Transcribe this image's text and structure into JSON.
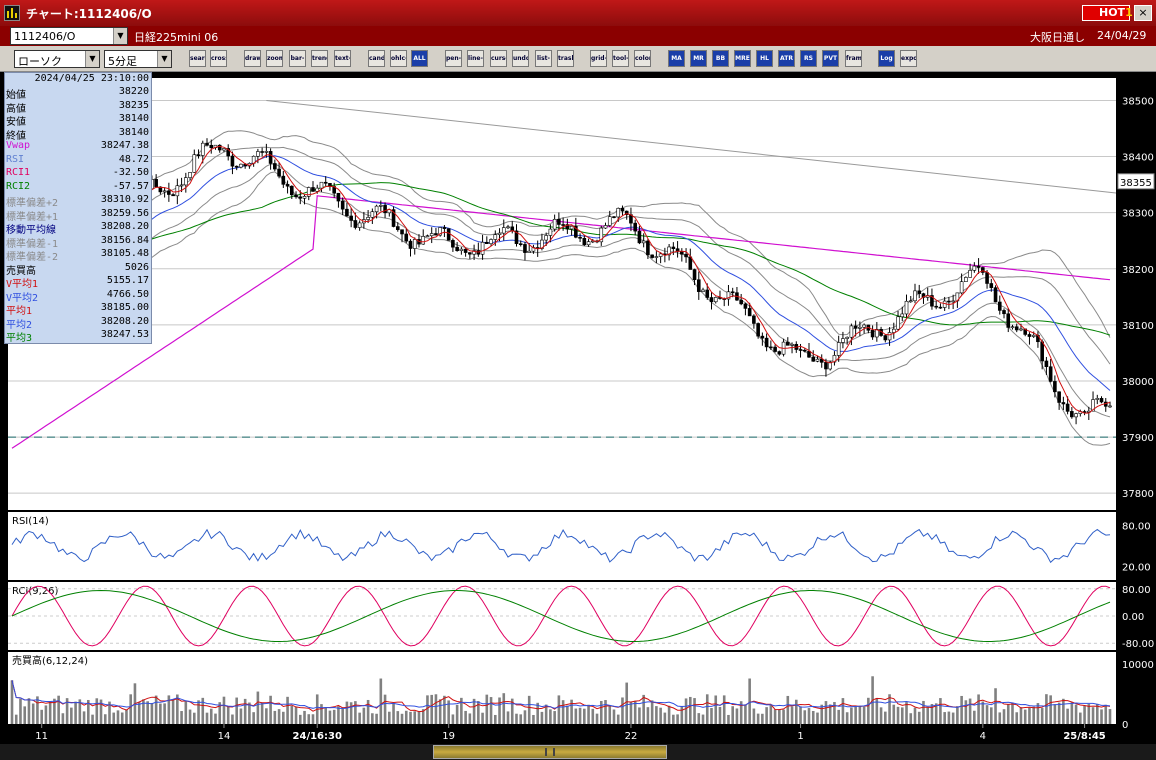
{
  "window": {
    "title": "チャート:1112406/O",
    "hot_label": "HOT",
    "hot_num": "1",
    "close": "×"
  },
  "header": {
    "symbol_code": "1112406/O",
    "instrument": "日経225mini 06",
    "chart_type": "ローソク",
    "interval": "5分足",
    "session": "大阪日通し",
    "date": "24/04/29"
  },
  "toolbar": {
    "buttons": [
      "search-icon",
      "crosshair-icon",
      "draw-icon",
      "zoom-icon",
      "bar-icon",
      "trend-icon",
      "text-icon",
      "candle-icon",
      "ohlc-icon",
      "ALL",
      "pen-icon",
      "line-icon",
      "cursor-icon",
      "undo-icon",
      "list-icon",
      "trash-icon",
      "grid-icon",
      "tool-icon",
      "color-icon",
      "MA",
      "MR",
      "BB",
      "MRE",
      "HL",
      "ATR",
      "RS",
      "PVT",
      "frame-icon",
      "Log",
      "export-icon"
    ]
  },
  "info_panel": {
    "datetime": "2024/04/25  23:10:00",
    "rows": [
      {
        "label": "始値",
        "value": "38220",
        "color": "#000000"
      },
      {
        "label": "高値",
        "value": "38235",
        "color": "#000000"
      },
      {
        "label": "安値",
        "value": "38140",
        "color": "#000000"
      },
      {
        "label": "終値",
        "value": "38140",
        "color": "#000000"
      },
      {
        "label": "Vwap",
        "value": "38247.38",
        "color": "#d010d0"
      },
      {
        "label": "RSI",
        "value": "48.72",
        "color": "#6080d0"
      },
      {
        "label": "RCI1",
        "value": "-32.50",
        "color": "#e00060"
      },
      {
        "label": "RCI2",
        "value": "-57.57",
        "color": "#008000"
      },
      {
        "label": "標準偏差+2",
        "value": "38310.92",
        "color": "#8a8a8a"
      },
      {
        "label": "標準偏差+1",
        "value": "38259.56",
        "color": "#8a8a8a"
      },
      {
        "label": "移動平均線",
        "value": "38208.20",
        "color": "#000080"
      },
      {
        "label": "標準偏差-1",
        "value": "38156.84",
        "color": "#8a8a8a"
      },
      {
        "label": "標準偏差-2",
        "value": "38105.48",
        "color": "#8a8a8a"
      },
      {
        "label": "売買高",
        "value": "5026",
        "color": "#000000"
      },
      {
        "label": "V平均1",
        "value": "5155.17",
        "color": "#d01010"
      },
      {
        "label": "V平均2",
        "value": "4766.50",
        "color": "#3050e0"
      },
      {
        "label": "平均1",
        "value": "38185.00",
        "color": "#d01010"
      },
      {
        "label": "平均2",
        "value": "38208.20",
        "color": "#3050e0"
      },
      {
        "label": "平均3",
        "value": "38247.53",
        "color": "#008000"
      }
    ]
  },
  "chart_data": [
    {
      "type": "candlestick",
      "y_ticks": [
        38500,
        38400,
        38300,
        38200,
        38100,
        38000,
        37900,
        37800
      ],
      "ylim": [
        37770,
        38540
      ],
      "current_price": "38355",
      "x_ticks": [
        "11",
        "14",
        "24/16:30",
        "19",
        "22",
        "1",
        "4",
        "25/8:45"
      ],
      "dashed_level": 37900,
      "key_prices": [
        {
          "x": "11",
          "v": 38200
        },
        {
          "x": "14",
          "v": 38420
        },
        {
          "x": "24/16:30",
          "v": 38330
        },
        {
          "x": "19",
          "v": 38240
        },
        {
          "x": "22",
          "v": 38280
        },
        {
          "x": "1",
          "v": 38030
        },
        {
          "x": "4",
          "v": 38190
        },
        {
          "x": "25/8:45",
          "v": 37920
        }
      ],
      "colors": {
        "up": "#ffffff",
        "down": "#000000",
        "ma1": "#d01010",
        "ma2": "#3050e0",
        "ma3": "#008000",
        "vwap": "#d010d0",
        "band": "#8a8a8a"
      }
    },
    {
      "type": "line",
      "label": "RSI(14)",
      "y_ticks": [
        "80.00",
        "20.00"
      ],
      "ylim": [
        0,
        100
      ],
      "colors": {
        "line": "#3060c8"
      }
    },
    {
      "type": "line",
      "label": "RCI(9,26)",
      "y_ticks": [
        "80.00",
        "0.00",
        "-80.00"
      ],
      "ylim": [
        -100,
        100
      ],
      "colors": {
        "rci1": "#e00060",
        "rci2": "#008000"
      }
    },
    {
      "type": "bar",
      "label": "売買高(6,12,24)",
      "y_ticks": [
        "10000",
        "0"
      ],
      "ylim": [
        0,
        12000
      ],
      "colors": {
        "bar": "#808080",
        "v1": "#d01010",
        "v2": "#3050e0",
        "v3": "#008000"
      }
    }
  ]
}
